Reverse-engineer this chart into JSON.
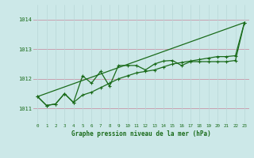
{
  "title": "Graphe pression niveau de la mer (hPa)",
  "bg_color": "#cce8e8",
  "grid_color_h": "#c8a0b0",
  "grid_color_v": "#b8d8d8",
  "line_color": "#1a6b1a",
  "ylim": [
    1010.5,
    1014.5
  ],
  "yticks": [
    1011,
    1012,
    1013,
    1014
  ],
  "xlim": [
    -0.5,
    23.5
  ],
  "xticks": [
    0,
    1,
    2,
    3,
    4,
    5,
    6,
    7,
    8,
    9,
    10,
    11,
    12,
    13,
    14,
    15,
    16,
    17,
    18,
    19,
    20,
    21,
    22,
    23
  ],
  "series1": [
    1011.4,
    1011.1,
    1011.15,
    1011.5,
    1011.2,
    1011.45,
    1011.55,
    1011.7,
    1011.85,
    1012.0,
    1012.1,
    1012.2,
    1012.25,
    1012.3,
    1012.4,
    1012.5,
    1012.55,
    1012.6,
    1012.65,
    1012.7,
    1012.75,
    1012.75,
    1012.78,
    1013.9
  ],
  "series2": [
    1011.4,
    1011.1,
    1011.15,
    1011.5,
    1011.2,
    1012.1,
    1011.85,
    1012.25,
    1011.75,
    1012.45,
    1012.45,
    1012.45,
    1012.3,
    1012.5,
    1012.6,
    1012.62,
    1012.45,
    1012.58,
    1012.58,
    1012.58,
    1012.58,
    1012.58,
    1012.62,
    1013.9
  ],
  "trend_x": [
    0,
    23
  ],
  "trend_y": [
    1011.4,
    1013.9
  ]
}
